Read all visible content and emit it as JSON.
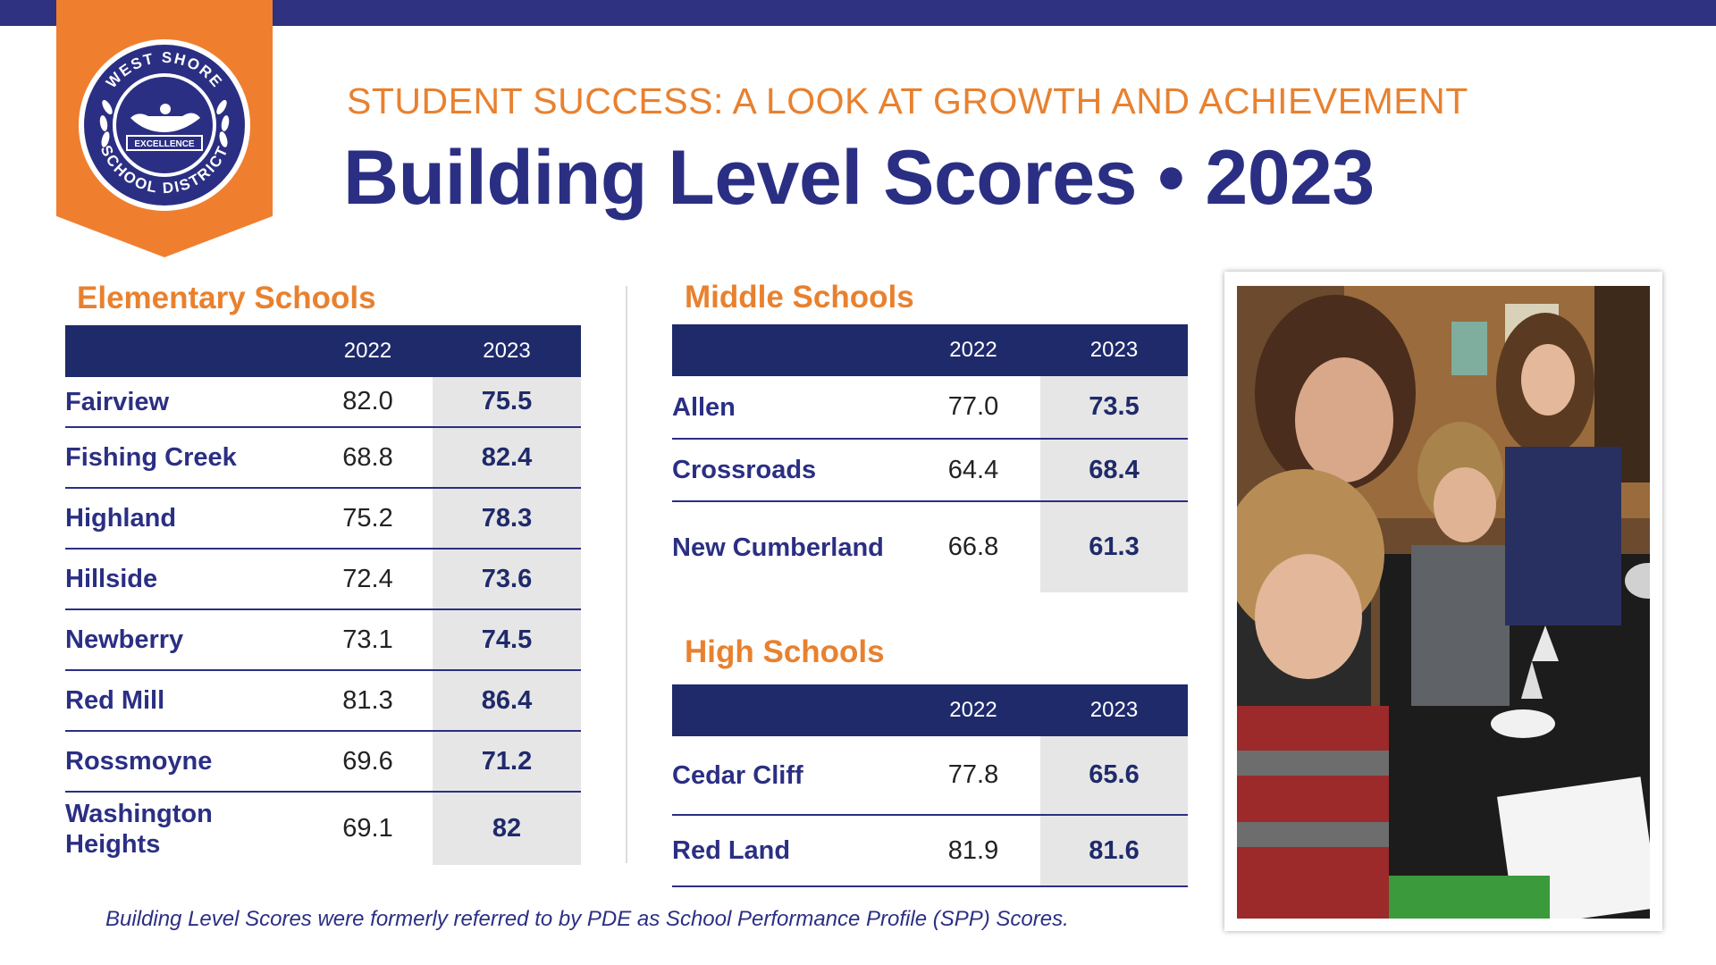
{
  "logo": {
    "top_text": "WEST SHORE",
    "bottom_text": "SCHOOL DISTRICT",
    "motto": "EXCELLENCE"
  },
  "header": {
    "subtitle": "STUDENT SUCCESS: A LOOK AT GROWTH AND ACHIEVEMENT",
    "title": "Building Level Scores • 2023"
  },
  "colors": {
    "navy": "#2b2f83",
    "orange": "#ef7f2f",
    "table_header": "#1f2a6b",
    "highlight_cell": "#e6e6e6"
  },
  "elementary": {
    "heading": "Elementary Schools",
    "col_2022": "2022",
    "col_2023": "2023",
    "rows": [
      {
        "name": "Fairview",
        "y2022": "82.0",
        "y2023": "75.5"
      },
      {
        "name": "Fishing Creek",
        "y2022": "68.8",
        "y2023": "82.4"
      },
      {
        "name": "Highland",
        "y2022": "75.2",
        "y2023": "78.3"
      },
      {
        "name": "Hillside",
        "y2022": "72.4",
        "y2023": "73.6"
      },
      {
        "name": "Newberry",
        "y2022": "73.1",
        "y2023": "74.5"
      },
      {
        "name": "Red Mill",
        "y2022": "81.3",
        "y2023": "86.4"
      },
      {
        "name": "Rossmoyne",
        "y2022": "69.6",
        "y2023": "71.2"
      },
      {
        "name": "Washington Heights",
        "y2022": "69.1",
        "y2023": "82"
      }
    ]
  },
  "middle": {
    "heading": "Middle Schools",
    "col_2022": "2022",
    "col_2023": "2023",
    "rows": [
      {
        "name": "Allen",
        "y2022": "77.0",
        "y2023": "73.5"
      },
      {
        "name": "Crossroads",
        "y2022": "64.4",
        "y2023": "68.4"
      },
      {
        "name": "New Cumberland",
        "y2022": "66.8",
        "y2023": "61.3"
      }
    ]
  },
  "high": {
    "heading": "High Schools",
    "col_2022": "2022",
    "col_2023": "2023",
    "rows": [
      {
        "name": "Cedar Cliff",
        "y2022": "77.8",
        "y2023": "65.6"
      },
      {
        "name": "Red Land",
        "y2022": "81.9",
        "y2023": "81.6"
      }
    ]
  },
  "footnote": "Building Level Scores were formerly referred to by PDE as School Performance Profile (SPP) Scores."
}
